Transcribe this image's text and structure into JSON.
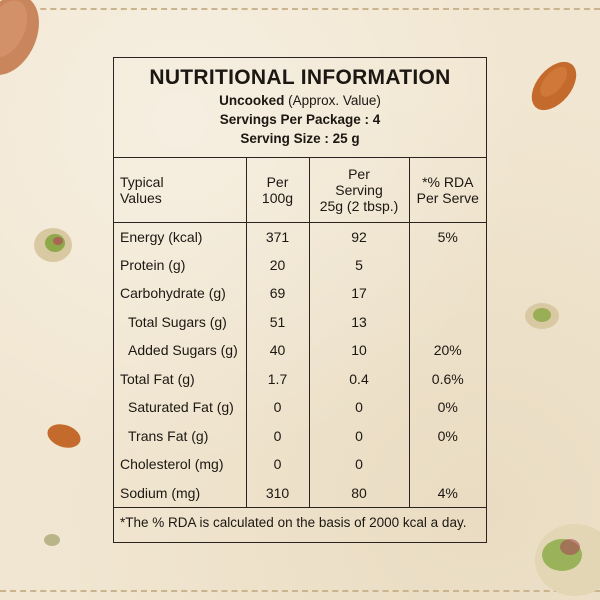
{
  "panel": {
    "title": "NUTRITIONAL INFORMATION",
    "state_label": "Uncooked",
    "state_note": "(Approx. Value)",
    "servings_per_package": "Servings Per Package : 4",
    "serving_size": "Serving Size : 25 g"
  },
  "table": {
    "headers": {
      "col1_line1": "Typical",
      "col1_line2": "Values",
      "col2_line1": "Per",
      "col2_line2": "100g",
      "col3_line1": "Per",
      "col3_line2": "Serving",
      "col3_line3": "25g (2 tbsp.)",
      "col4_line1": "*% RDA",
      "col4_line2": "Per Serve"
    },
    "rows": [
      {
        "name": "Energy (kcal)",
        "per100": "371",
        "perServing": "92",
        "rda": "5%"
      },
      {
        "name": "Protein (g)",
        "per100": "20",
        "perServing": "5",
        "rda": ""
      },
      {
        "name": "Carbohydrate (g)",
        "per100": "69",
        "perServing": "17",
        "rda": ""
      },
      {
        "name": "Total Sugars (g)",
        "per100": "51",
        "perServing": "13",
        "rda": ""
      },
      {
        "name": "Added Sugars (g)",
        "per100": "40",
        "perServing": "10",
        "rda": "20%"
      },
      {
        "name": "Total Fat (g)",
        "per100": "1.7",
        "perServing": "0.4",
        "rda": "0.6%"
      },
      {
        "name": "Saturated Fat (g)",
        "per100": "0",
        "perServing": "0",
        "rda": "0%"
      },
      {
        "name": "Trans Fat (g)",
        "per100": "0",
        "perServing": "0",
        "rda": "0%"
      },
      {
        "name": "Cholesterol (mg)",
        "per100": "0",
        "perServing": "0",
        "rda": ""
      },
      {
        "name": "Sodium (mg)",
        "per100": "310",
        "perServing": "80",
        "rda": "4%"
      }
    ]
  },
  "footnote": "*The % RDA is calculated on the basis of 2000 kcal a day.",
  "decor": {
    "background_color": "#f1e6d1",
    "line_color": "#2a2320",
    "icons": [
      "almond-icon",
      "pistachio-icon"
    ]
  }
}
